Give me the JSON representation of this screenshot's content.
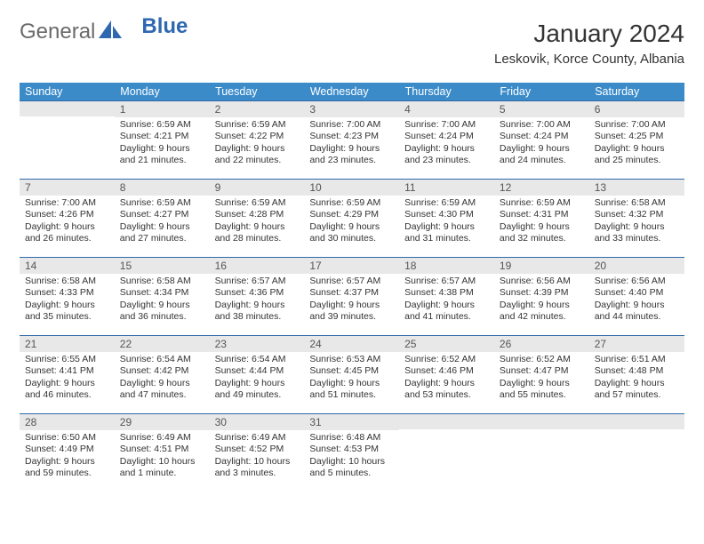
{
  "brand": {
    "part1": "General",
    "part2": "Blue"
  },
  "title": "January 2024",
  "location": "Leskovik, Korce County, Albania",
  "day_headers": [
    "Sunday",
    "Monday",
    "Tuesday",
    "Wednesday",
    "Thursday",
    "Friday",
    "Saturday"
  ],
  "style": {
    "header_bg": "#3b8bc9",
    "header_text": "#ffffff",
    "row_divider": "#2f6aa8",
    "daynum_bg": "#e8e8e8",
    "body_fontsize": 10.5,
    "daynum_fontsize": 12,
    "title_fontsize": 28
  },
  "weeks": [
    [
      {
        "n": "",
        "sunrise": "",
        "sunset": "",
        "daylight": ""
      },
      {
        "n": "1",
        "sunrise": "Sunrise: 6:59 AM",
        "sunset": "Sunset: 4:21 PM",
        "daylight": "Daylight: 9 hours and 21 minutes."
      },
      {
        "n": "2",
        "sunrise": "Sunrise: 6:59 AM",
        "sunset": "Sunset: 4:22 PM",
        "daylight": "Daylight: 9 hours and 22 minutes."
      },
      {
        "n": "3",
        "sunrise": "Sunrise: 7:00 AM",
        "sunset": "Sunset: 4:23 PM",
        "daylight": "Daylight: 9 hours and 23 minutes."
      },
      {
        "n": "4",
        "sunrise": "Sunrise: 7:00 AM",
        "sunset": "Sunset: 4:24 PM",
        "daylight": "Daylight: 9 hours and 23 minutes."
      },
      {
        "n": "5",
        "sunrise": "Sunrise: 7:00 AM",
        "sunset": "Sunset: 4:24 PM",
        "daylight": "Daylight: 9 hours and 24 minutes."
      },
      {
        "n": "6",
        "sunrise": "Sunrise: 7:00 AM",
        "sunset": "Sunset: 4:25 PM",
        "daylight": "Daylight: 9 hours and 25 minutes."
      }
    ],
    [
      {
        "n": "7",
        "sunrise": "Sunrise: 7:00 AM",
        "sunset": "Sunset: 4:26 PM",
        "daylight": "Daylight: 9 hours and 26 minutes."
      },
      {
        "n": "8",
        "sunrise": "Sunrise: 6:59 AM",
        "sunset": "Sunset: 4:27 PM",
        "daylight": "Daylight: 9 hours and 27 minutes."
      },
      {
        "n": "9",
        "sunrise": "Sunrise: 6:59 AM",
        "sunset": "Sunset: 4:28 PM",
        "daylight": "Daylight: 9 hours and 28 minutes."
      },
      {
        "n": "10",
        "sunrise": "Sunrise: 6:59 AM",
        "sunset": "Sunset: 4:29 PM",
        "daylight": "Daylight: 9 hours and 30 minutes."
      },
      {
        "n": "11",
        "sunrise": "Sunrise: 6:59 AM",
        "sunset": "Sunset: 4:30 PM",
        "daylight": "Daylight: 9 hours and 31 minutes."
      },
      {
        "n": "12",
        "sunrise": "Sunrise: 6:59 AM",
        "sunset": "Sunset: 4:31 PM",
        "daylight": "Daylight: 9 hours and 32 minutes."
      },
      {
        "n": "13",
        "sunrise": "Sunrise: 6:58 AM",
        "sunset": "Sunset: 4:32 PM",
        "daylight": "Daylight: 9 hours and 33 minutes."
      }
    ],
    [
      {
        "n": "14",
        "sunrise": "Sunrise: 6:58 AM",
        "sunset": "Sunset: 4:33 PM",
        "daylight": "Daylight: 9 hours and 35 minutes."
      },
      {
        "n": "15",
        "sunrise": "Sunrise: 6:58 AM",
        "sunset": "Sunset: 4:34 PM",
        "daylight": "Daylight: 9 hours and 36 minutes."
      },
      {
        "n": "16",
        "sunrise": "Sunrise: 6:57 AM",
        "sunset": "Sunset: 4:36 PM",
        "daylight": "Daylight: 9 hours and 38 minutes."
      },
      {
        "n": "17",
        "sunrise": "Sunrise: 6:57 AM",
        "sunset": "Sunset: 4:37 PM",
        "daylight": "Daylight: 9 hours and 39 minutes."
      },
      {
        "n": "18",
        "sunrise": "Sunrise: 6:57 AM",
        "sunset": "Sunset: 4:38 PM",
        "daylight": "Daylight: 9 hours and 41 minutes."
      },
      {
        "n": "19",
        "sunrise": "Sunrise: 6:56 AM",
        "sunset": "Sunset: 4:39 PM",
        "daylight": "Daylight: 9 hours and 42 minutes."
      },
      {
        "n": "20",
        "sunrise": "Sunrise: 6:56 AM",
        "sunset": "Sunset: 4:40 PM",
        "daylight": "Daylight: 9 hours and 44 minutes."
      }
    ],
    [
      {
        "n": "21",
        "sunrise": "Sunrise: 6:55 AM",
        "sunset": "Sunset: 4:41 PM",
        "daylight": "Daylight: 9 hours and 46 minutes."
      },
      {
        "n": "22",
        "sunrise": "Sunrise: 6:54 AM",
        "sunset": "Sunset: 4:42 PM",
        "daylight": "Daylight: 9 hours and 47 minutes."
      },
      {
        "n": "23",
        "sunrise": "Sunrise: 6:54 AM",
        "sunset": "Sunset: 4:44 PM",
        "daylight": "Daylight: 9 hours and 49 minutes."
      },
      {
        "n": "24",
        "sunrise": "Sunrise: 6:53 AM",
        "sunset": "Sunset: 4:45 PM",
        "daylight": "Daylight: 9 hours and 51 minutes."
      },
      {
        "n": "25",
        "sunrise": "Sunrise: 6:52 AM",
        "sunset": "Sunset: 4:46 PM",
        "daylight": "Daylight: 9 hours and 53 minutes."
      },
      {
        "n": "26",
        "sunrise": "Sunrise: 6:52 AM",
        "sunset": "Sunset: 4:47 PM",
        "daylight": "Daylight: 9 hours and 55 minutes."
      },
      {
        "n": "27",
        "sunrise": "Sunrise: 6:51 AM",
        "sunset": "Sunset: 4:48 PM",
        "daylight": "Daylight: 9 hours and 57 minutes."
      }
    ],
    [
      {
        "n": "28",
        "sunrise": "Sunrise: 6:50 AM",
        "sunset": "Sunset: 4:49 PM",
        "daylight": "Daylight: 9 hours and 59 minutes."
      },
      {
        "n": "29",
        "sunrise": "Sunrise: 6:49 AM",
        "sunset": "Sunset: 4:51 PM",
        "daylight": "Daylight: 10 hours and 1 minute."
      },
      {
        "n": "30",
        "sunrise": "Sunrise: 6:49 AM",
        "sunset": "Sunset: 4:52 PM",
        "daylight": "Daylight: 10 hours and 3 minutes."
      },
      {
        "n": "31",
        "sunrise": "Sunrise: 6:48 AM",
        "sunset": "Sunset: 4:53 PM",
        "daylight": "Daylight: 10 hours and 5 minutes."
      },
      {
        "n": "",
        "sunrise": "",
        "sunset": "",
        "daylight": ""
      },
      {
        "n": "",
        "sunrise": "",
        "sunset": "",
        "daylight": ""
      },
      {
        "n": "",
        "sunrise": "",
        "sunset": "",
        "daylight": ""
      }
    ]
  ]
}
